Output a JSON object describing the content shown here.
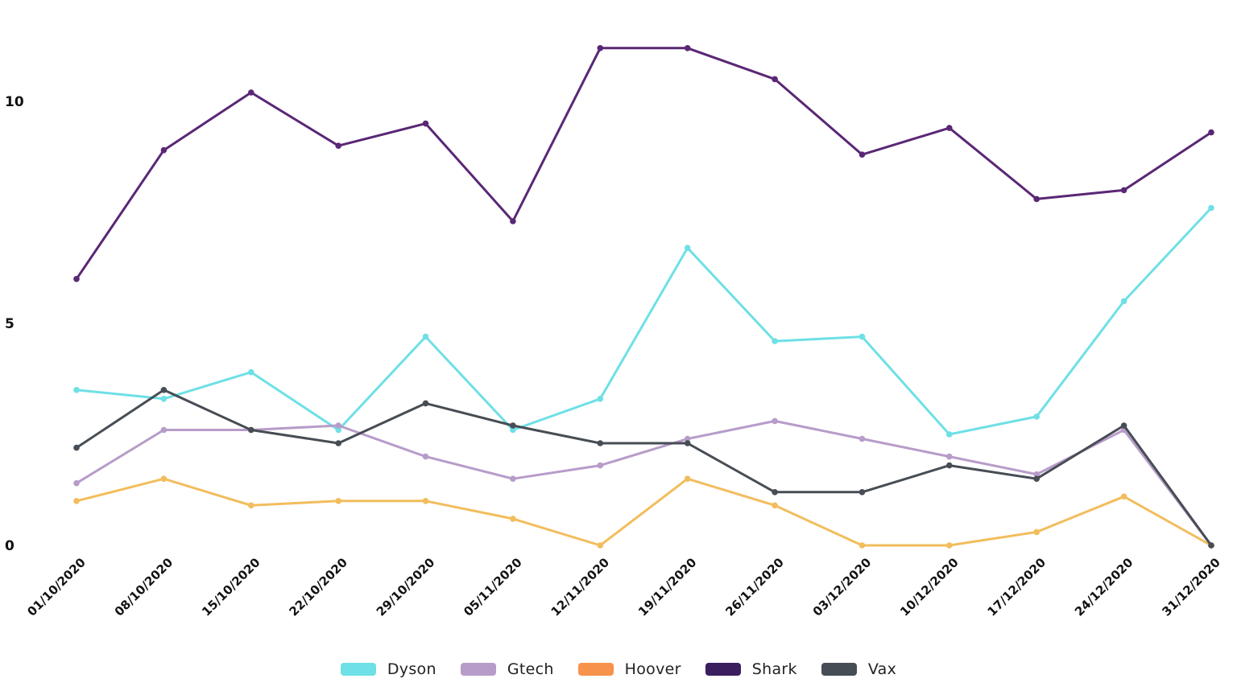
{
  "chart_data": {
    "type": "line",
    "title": "",
    "xlabel": "",
    "ylabel": "",
    "ylim": [
      0,
      11
    ],
    "yticks": [
      0,
      5,
      10
    ],
    "grid": false,
    "legend_position": "bottom",
    "categories": [
      "01/10/2020",
      "08/10/2020",
      "15/10/2020",
      "22/10/2020",
      "29/10/2020",
      "05/11/2020",
      "12/11/2020",
      "19/11/2020",
      "26/11/2020",
      "03/12/2020",
      "10/12/2020",
      "17/12/2020",
      "24/12/2020",
      "31/12/2020"
    ],
    "series": [
      {
        "name": "Dyson",
        "color": "#6ee0e6",
        "values": [
          3.5,
          3.3,
          3.9,
          2.6,
          4.7,
          2.6,
          3.3,
          6.7,
          4.6,
          4.7,
          2.5,
          2.9,
          5.5,
          7.6
        ]
      },
      {
        "name": "Gtech",
        "color": "#b79cc9",
        "values": [
          1.4,
          2.6,
          2.6,
          2.7,
          2.0,
          1.5,
          1.8,
          2.4,
          2.8,
          2.4,
          2.0,
          1.6,
          2.6,
          0.0
        ]
      },
      {
        "name": "Hoover",
        "color": "#f2bd5c",
        "legend_color": "#f7924c",
        "values": [
          1.0,
          1.5,
          0.9,
          1.0,
          1.0,
          0.6,
          0.0,
          1.5,
          0.9,
          0.0,
          0.0,
          0.3,
          1.1,
          0.0
        ]
      },
      {
        "name": "Shark",
        "color": "#5a2775",
        "legend_color": "#3a1e5e",
        "values": [
          6.0,
          8.9,
          10.2,
          9.0,
          9.5,
          7.3,
          11.2,
          11.2,
          10.5,
          8.8,
          9.4,
          7.8,
          8.0,
          9.3
        ]
      },
      {
        "name": "Vax",
        "color": "#474d54",
        "values": [
          2.2,
          3.5,
          2.6,
          2.3,
          3.2,
          2.7,
          2.3,
          2.3,
          1.2,
          1.2,
          1.8,
          1.5,
          2.7,
          0.0
        ]
      }
    ]
  }
}
